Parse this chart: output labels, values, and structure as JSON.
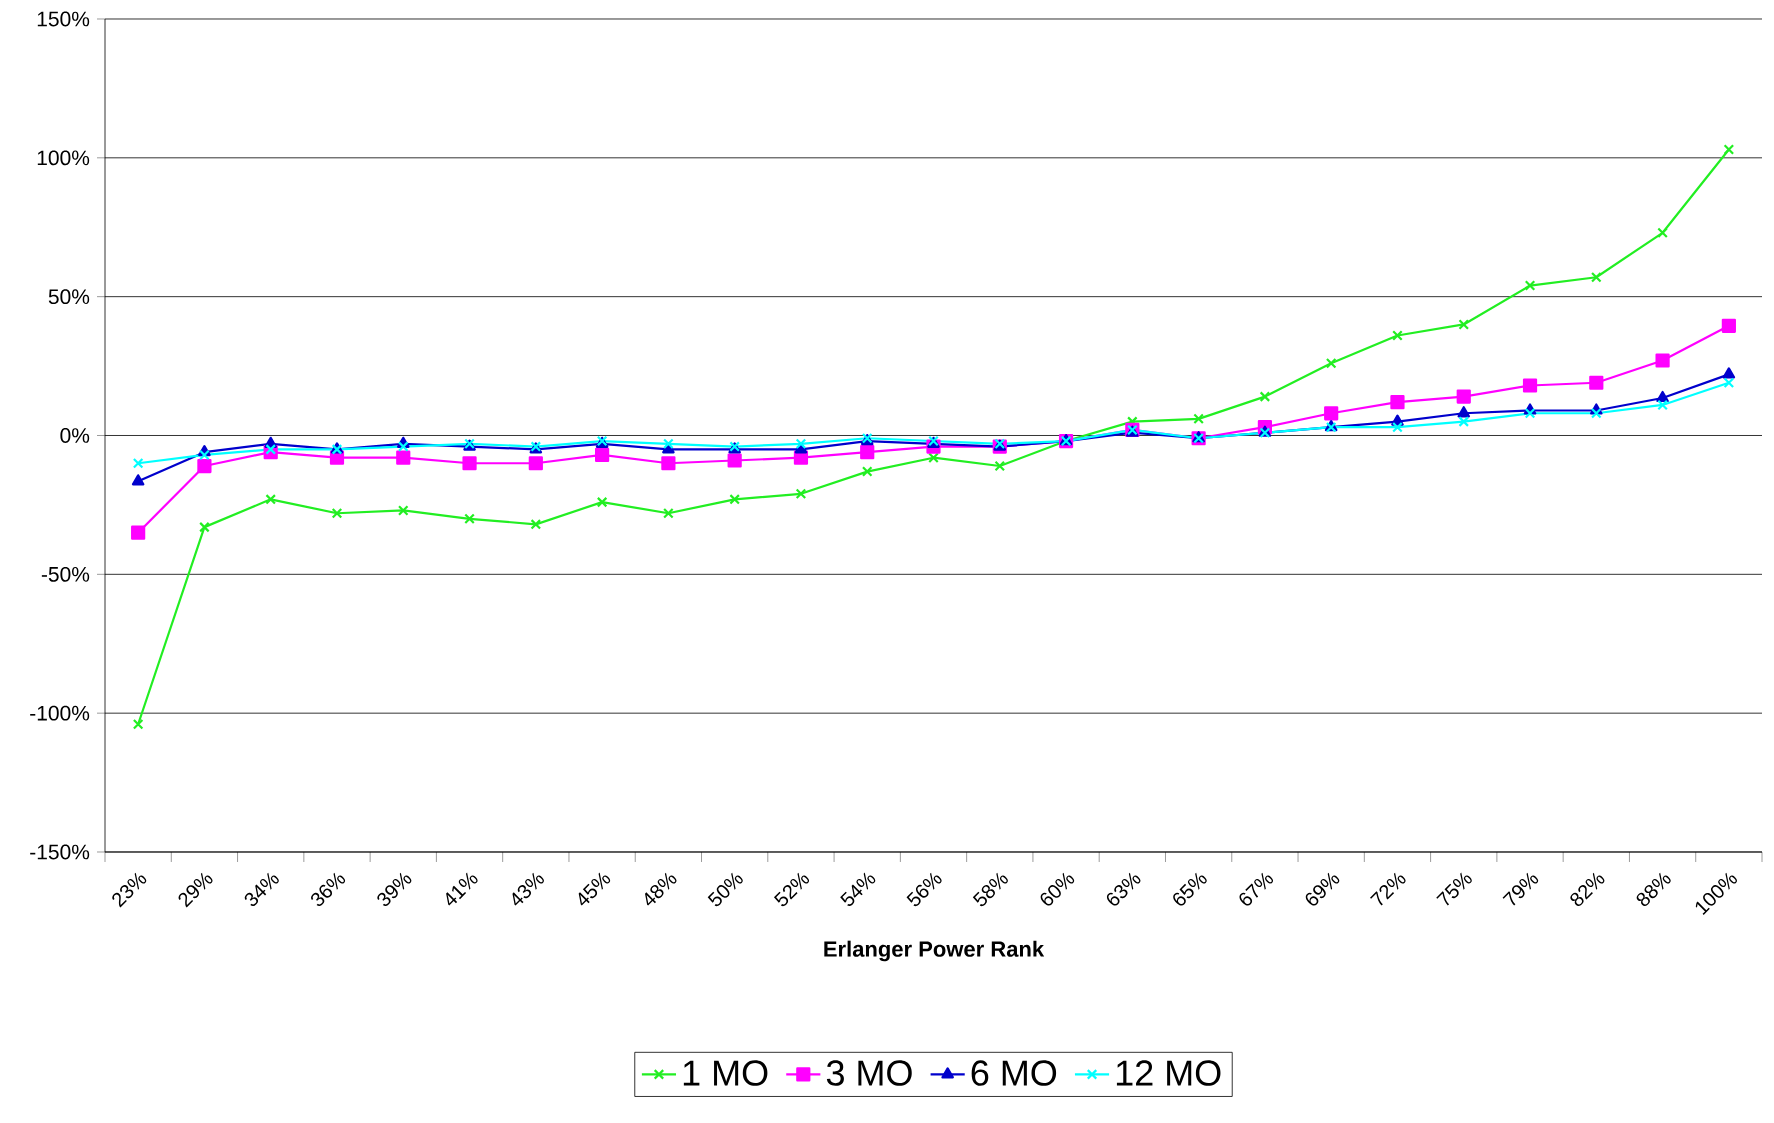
{
  "chart_data": {
    "type": "line",
    "xlabel": "Erlanger Power Rank",
    "categories": [
      "23%",
      "29%",
      "34%",
      "36%",
      "39%",
      "41%",
      "43%",
      "45%",
      "48%",
      "50%",
      "52%",
      "54%",
      "56%",
      "58%",
      "60%",
      "63%",
      "65%",
      "67%",
      "69%",
      "72%",
      "75%",
      "79%",
      "82%",
      "88%",
      "100%"
    ],
    "series": [
      {
        "name": "1 MO",
        "color": "#22ee22",
        "marker": "cross",
        "values": [
          -104,
          -33,
          -23,
          -28,
          -27,
          -30,
          -32,
          -24,
          -28,
          -23,
          -21,
          -13,
          -8,
          -11,
          -2,
          5,
          6,
          14,
          26,
          36,
          40,
          54,
          57,
          73,
          103
        ]
      },
      {
        "name": "3 MO",
        "color": "#ff00ff",
        "marker": "square",
        "values": [
          -35,
          -11,
          -6,
          -8,
          -8,
          -10,
          -10,
          -7,
          -10,
          -9,
          -8,
          -6,
          -4,
          -4,
          -2,
          2,
          -1,
          3,
          8,
          12,
          14,
          18,
          19,
          27,
          39.5
        ]
      },
      {
        "name": "6 MO",
        "color": "#0000cc",
        "marker": "triangle",
        "values": [
          -16.5,
          -6,
          -3,
          -5,
          -3,
          -4,
          -5,
          -3,
          -5,
          -5,
          -5,
          -2,
          -3,
          -4,
          -2,
          1,
          -1,
          1,
          3,
          5,
          8,
          9,
          9,
          13.5,
          22
        ]
      },
      {
        "name": "12 MO",
        "color": "#00ffff",
        "marker": "cross",
        "values": [
          -10,
          -7,
          -5,
          -5,
          -4,
          -3,
          -4,
          -2,
          -3,
          -4,
          -3,
          -1,
          -2,
          -3,
          -2,
          2,
          -1,
          1,
          3,
          3,
          5,
          8,
          8,
          11,
          19
        ]
      }
    ],
    "ylim": [
      -150,
      150
    ],
    "yticks": [
      {
        "value": -150,
        "label": "-150%"
      },
      {
        "value": -100,
        "label": "-100%"
      },
      {
        "value": -50,
        "label": "-50%"
      },
      {
        "value": 0,
        "label": "0%"
      },
      {
        "value": 50,
        "label": "50%"
      },
      {
        "value": 100,
        "label": "100%"
      },
      {
        "value": 150,
        "label": "150%"
      }
    ],
    "grid": "y",
    "legend": "bottom",
    "line_style": "solid"
  }
}
